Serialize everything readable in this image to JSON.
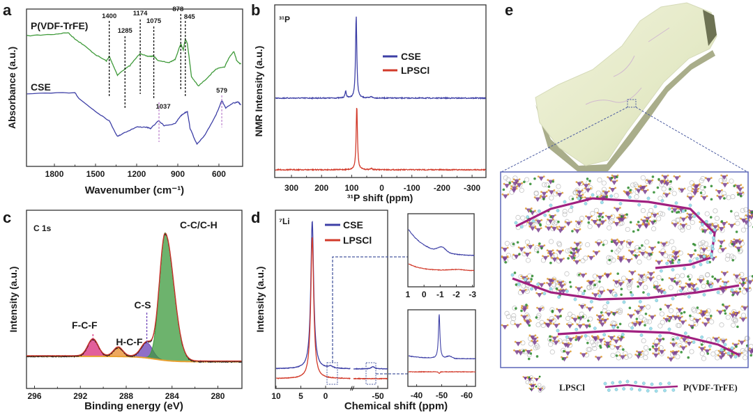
{
  "panels": {
    "a": {
      "letter": "a",
      "series_labels": [
        "P(VDF-TrFE)",
        "CSE"
      ]
    },
    "b": {
      "letter": "b",
      "nucleus": "³¹P"
    },
    "c": {
      "letter": "c",
      "region": "C 1s"
    },
    "d": {
      "letter": "d",
      "nucleus": "⁷Li"
    },
    "e": {
      "letter": "e",
      "legend": [
        "LPSCl",
        "P(VDF-TrFE)"
      ]
    }
  },
  "colors": {
    "green": "#3f9a3a",
    "blue": "#3d3fa6",
    "red": "#d23a2a",
    "purple_annot": "#c08ad0",
    "pink": "#d8297a",
    "orange": "#e8892a",
    "violet": "#6a3fb5",
    "cc_green": "#3c9a3c",
    "frame": "#333333",
    "box": "#5a66b8"
  },
  "chart_data": [
    {
      "panel": "a",
      "type": "line",
      "xlabel": "Wavenumber (cm⁻¹)",
      "ylabel": "Absorbance (a.u.)",
      "xlim": [
        2000,
        430
      ],
      "ylim": [
        0,
        1
      ],
      "xticks": [
        1800,
        1500,
        1200,
        900,
        600
      ],
      "series": [
        {
          "name": "P(VDF-TrFE)",
          "color": "#3f9a3a",
          "x": [
            2000,
            1800,
            1700,
            1650,
            1600,
            1500,
            1420,
            1400,
            1380,
            1340,
            1300,
            1250,
            1174,
            1130,
            1100,
            1075,
            1040,
            960,
            920,
            878,
            860,
            845,
            830,
            800,
            750,
            700,
            620,
            560,
            520,
            490,
            470,
            440
          ],
          "y": [
            0.83,
            0.84,
            0.85,
            0.81,
            0.78,
            0.71,
            0.67,
            0.7,
            0.66,
            0.58,
            0.61,
            0.64,
            0.72,
            0.7,
            0.7,
            0.7,
            0.67,
            0.66,
            0.68,
            0.78,
            0.74,
            0.81,
            0.78,
            0.57,
            0.51,
            0.55,
            0.62,
            0.63,
            0.7,
            0.73,
            0.67,
            0.65
          ]
        },
        {
          "name": "CSE",
          "color": "#3d3fa6",
          "x": [
            2000,
            1650,
            1620,
            1500,
            1400,
            1340,
            1300,
            1200,
            1130,
            1100,
            1040,
            1000,
            920,
            880,
            850,
            830,
            810,
            760,
            700,
            620,
            579,
            550,
            500,
            460,
            440
          ],
          "y": [
            0.46,
            0.47,
            0.43,
            0.35,
            0.29,
            0.19,
            0.21,
            0.25,
            0.25,
            0.24,
            0.29,
            0.26,
            0.27,
            0.32,
            0.34,
            0.35,
            0.24,
            0.14,
            0.2,
            0.33,
            0.42,
            0.37,
            0.4,
            0.41,
            0.39
          ]
        }
      ],
      "annotations": [
        {
          "label": "1400",
          "x": 1400,
          "color": "#111111"
        },
        {
          "label": "1285",
          "x": 1285,
          "color": "#111111"
        },
        {
          "label": "1174",
          "x": 1174,
          "color": "#111111"
        },
        {
          "label": "1075",
          "x": 1075,
          "color": "#111111"
        },
        {
          "label": "878",
          "x": 878,
          "color": "#111111"
        },
        {
          "label": "845",
          "x": 845,
          "color": "#111111"
        },
        {
          "label": "1037",
          "x": 1037,
          "color": "#c08ad0"
        },
        {
          "label": "579",
          "x": 579,
          "color": "#c08ad0"
        }
      ]
    },
    {
      "panel": "b",
      "type": "line",
      "xlabel": "³¹P shift (ppm)",
      "ylabel": "NMR Intensity (a.u.)",
      "xlim": [
        355,
        -345
      ],
      "ylim": [
        0,
        1
      ],
      "xticks": [
        300,
        200,
        100,
        0,
        -100,
        -200,
        -300
      ],
      "legend": {
        "placement": "top-right",
        "entries": [
          "CSE",
          "LPSCl"
        ]
      },
      "series": [
        {
          "name": "CSE",
          "color": "#3d3fa6",
          "offset": 0.46,
          "peaks": [
            {
              "center": 85,
              "height": 0.48,
              "width": 2.5
            },
            {
              "center": 120,
              "height": 0.04,
              "width": 2.5
            },
            {
              "center": 35,
              "height": 0.01,
              "width": 3
            }
          ]
        },
        {
          "name": "LPSCl",
          "color": "#d23a2a",
          "offset": 0.045,
          "peaks": [
            {
              "center": 83,
              "height": 0.375,
              "width": 2.5
            },
            {
              "center": 35,
              "height": 0.008,
              "width": 3
            }
          ]
        }
      ]
    },
    {
      "panel": "c",
      "type": "area",
      "xlabel": "Binding energy (eV)",
      "ylabel": "Intensity (a.u.)",
      "xlim": [
        296.7,
        277.9
      ],
      "ylim": [
        0,
        1
      ],
      "xticks": [
        296,
        292,
        288,
        284,
        280
      ],
      "baseline": {
        "high_be": 0.18,
        "low_be": 0.15
      },
      "components": [
        {
          "name": "F-C-F",
          "center": 290.9,
          "height": 0.095,
          "sigma": 0.45,
          "color": "#d8297a"
        },
        {
          "name": "H-C-F",
          "center": 288.7,
          "height": 0.05,
          "sigma": 0.4,
          "color": "#e8892a"
        },
        {
          "name": "C-S",
          "center": 286.2,
          "height": 0.085,
          "sigma": 0.5,
          "color": "#6a3fb5"
        },
        {
          "name": "C-C/C-H",
          "center": 284.6,
          "height": 0.71,
          "sigma": 0.5,
          "sigma_low_be": 0.75,
          "color": "#3c9a3c"
        }
      ]
    },
    {
      "panel": "d",
      "type": "line",
      "xlabel": "Chemical shift (ppm)",
      "ylabel": "Intensity (a.u.)",
      "xlim_segments": [
        [
          10,
          -5
        ],
        [
          -45,
          -52
        ]
      ],
      "ylim": [
        0,
        1
      ],
      "xticks": [
        10,
        5,
        0,
        -50
      ],
      "legend": {
        "placement": "top-right",
        "entries": [
          "CSE",
          "LPSCl"
        ]
      },
      "series": [
        {
          "name": "CSE",
          "color": "#3d3fa6",
          "offset": 0.11,
          "peaks": [
            {
              "center": 2.7,
              "height": 0.83,
              "width": 0.35
            },
            {
              "center": -1,
              "height": 0.012,
              "width": 0.5
            },
            {
              "center": -49,
              "height": 0.012,
              "width": 0.4
            }
          ]
        },
        {
          "name": "LPSCl",
          "color": "#d23a2a",
          "offset": 0.055,
          "peaks": [
            {
              "center": 2.7,
              "height": 0.795,
              "width": 0.35
            }
          ]
        }
      ],
      "insets": [
        {
          "xlim": [
            1,
            -3.1
          ],
          "xticks": [
            1,
            0,
            -1,
            -2,
            -3
          ],
          "ylim": [
            0,
            1
          ],
          "series": [
            {
              "name": "CSE",
              "color": "#3d3fa6",
              "offset": 0.42,
              "decay_amp": 0.38,
              "decay_ppm": 1.1,
              "peaks": [
                {
                  "center": -1.1,
                  "height": 0.07,
                  "sigma": 0.25
                }
              ]
            },
            {
              "name": "LPSCl",
              "color": "#d23a2a",
              "offset": 0.22,
              "decay_amp": 0.1,
              "decay_ppm": 0.8,
              "peaks": [
                {
                  "center": -2.0,
                  "height": 0.015,
                  "sigma": 0.5
                }
              ]
            }
          ]
        },
        {
          "xlim": [
            -36.5,
            -63.5
          ],
          "xticks": [
            -40,
            -50,
            -60
          ],
          "ylim": [
            0,
            1
          ],
          "series": [
            {
              "name": "CSE",
              "color": "#3d3fa6",
              "offset": 0.36,
              "decay_amp": 0.04,
              "decay_ppm": 6,
              "peaks": [
                {
                  "center": -49,
                  "height": 0.58,
                  "width": 0.35
                },
                {
                  "center": -53,
                  "height": 0.03,
                  "sigma": 1
                }
              ]
            },
            {
              "name": "LPSCl",
              "color": "#d23a2a",
              "offset": 0.19,
              "decay_amp": 0,
              "decay_ppm": 1,
              "peaks": [
                {
                  "center": -49,
                  "height": -0.02,
                  "sigma": 0.3
                }
              ]
            }
          ]
        }
      ]
    }
  ]
}
